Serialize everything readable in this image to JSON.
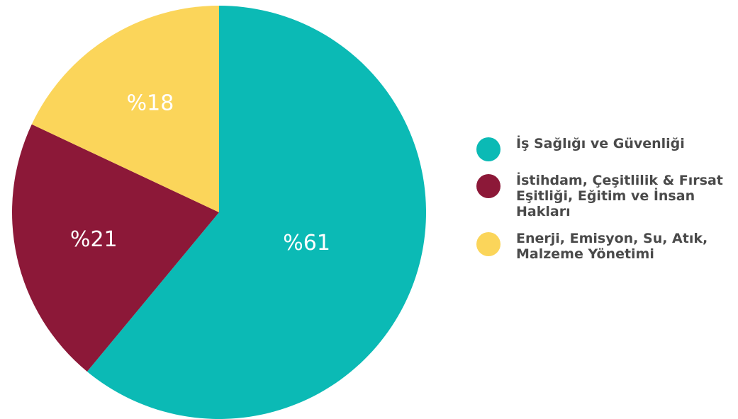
{
  "chart_data": {
    "type": "pie",
    "categories": [
      "İş Sağlığı ve Güvenliği",
      "İstihdam, Çeşitlilik & Fırsat Eşitliği, Eğitim ve İnsan Hakları",
      "Enerji, Emisyon, Su, Atık, Malzeme Yönetimi"
    ],
    "values": [
      61,
      21,
      18
    ],
    "value_labels": [
      "%61",
      "%21",
      "%18"
    ],
    "colors": [
      "#0bbab5",
      "#8c1838",
      "#fbd55a"
    ],
    "legend": "right"
  }
}
